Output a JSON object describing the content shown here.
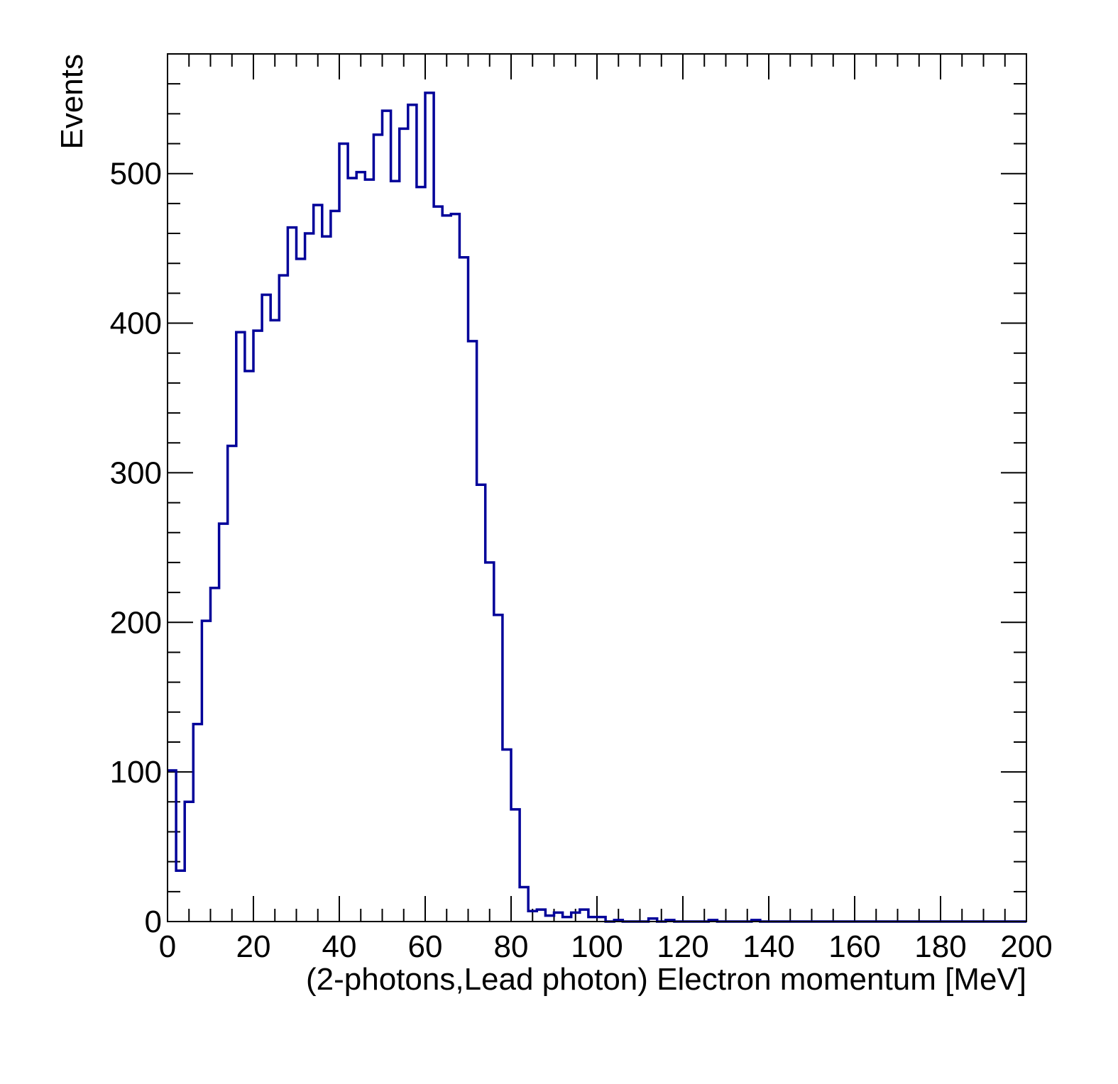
{
  "chart_data": {
    "type": "histogram",
    "title": "",
    "xlabel": "(2-photons,Lead photon) Electron momentum [MeV]",
    "ylabel": "Events",
    "xlim": [
      0,
      200
    ],
    "ylim": [
      0,
      580
    ],
    "bin_width": 2,
    "x_ticks": [
      0,
      20,
      40,
      60,
      80,
      100,
      120,
      140,
      160,
      180,
      200
    ],
    "y_ticks": [
      0,
      100,
      200,
      300,
      400,
      500
    ],
    "line_color": "#000099",
    "grid": false,
    "legend": "none",
    "series": [
      {
        "values": [
          101,
          34,
          80,
          132,
          201,
          223,
          266,
          318,
          394,
          368,
          395,
          419,
          402,
          432,
          464,
          443,
          460,
          479,
          458,
          475,
          520,
          497,
          501,
          496,
          526,
          542,
          495,
          530,
          546,
          491,
          554,
          478,
          472,
          473,
          444,
          388,
          292,
          240,
          205,
          115,
          75,
          23,
          7,
          8,
          4,
          6,
          3,
          6,
          8,
          3,
          3,
          0,
          1,
          0,
          0,
          0,
          2,
          0,
          1,
          0,
          0,
          0,
          0,
          1,
          0,
          0,
          0,
          0,
          1,
          0,
          0,
          0,
          0,
          0,
          0,
          0,
          0,
          0,
          0,
          0,
          0,
          0,
          0,
          0,
          0,
          0,
          0,
          0,
          0,
          0,
          0,
          0,
          0,
          0,
          0,
          0,
          0,
          0,
          0,
          0
        ]
      }
    ]
  }
}
